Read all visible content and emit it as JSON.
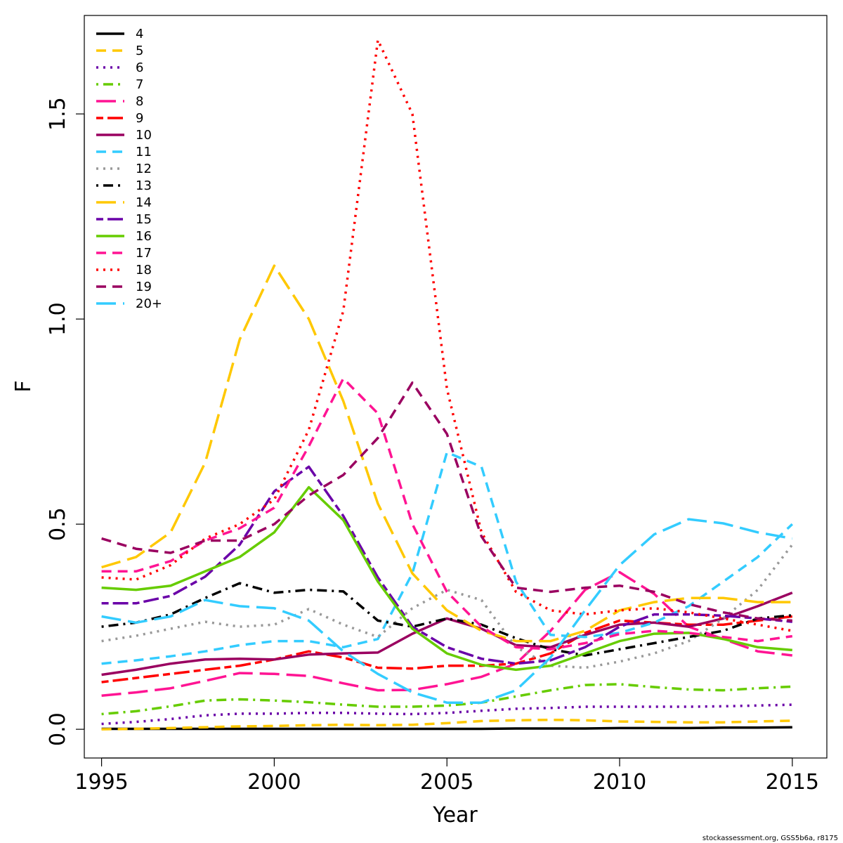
{
  "chart_data": {
    "type": "line",
    "title": "",
    "xlabel": "Year",
    "ylabel": "F",
    "xlim": [
      1994.5,
      2016
    ],
    "ylim": [
      -0.07,
      1.74
    ],
    "x_ticks": [
      1995,
      2000,
      2005,
      2010,
      2015
    ],
    "y_ticks": [
      0.0,
      0.5,
      1.0,
      1.5
    ],
    "x_tick_labels": [
      "1995",
      "2000",
      "2005",
      "2010",
      "2015"
    ],
    "y_tick_labels": [
      "0.0",
      "0.5",
      "1.0",
      "1.5"
    ],
    "grid": false,
    "legend_position": "top-left",
    "x": [
      1995,
      1996,
      1997,
      1998,
      1999,
      2000,
      2001,
      2002,
      2003,
      2004,
      2005,
      2006,
      2007,
      2008,
      2009,
      2010,
      2011,
      2012,
      2013,
      2014,
      2015
    ],
    "series": [
      {
        "name": "4",
        "color": "#000000",
        "dash": "solid",
        "values": [
          0.001,
          0.001,
          0.001,
          0.001,
          0.001,
          0.001,
          0.001,
          0.001,
          0.001,
          0.001,
          0.001,
          0.001,
          0.002,
          0.002,
          0.002,
          0.003,
          0.003,
          0.003,
          0.004,
          0.004,
          0.005
        ]
      },
      {
        "name": "5",
        "color": "#FFC800",
        "dash": "dash",
        "values": [
          0.0,
          0.001,
          0.003,
          0.005,
          0.007,
          0.008,
          0.01,
          0.011,
          0.01,
          0.011,
          0.015,
          0.02,
          0.022,
          0.023,
          0.022,
          0.019,
          0.018,
          0.017,
          0.017,
          0.019,
          0.021
        ]
      },
      {
        "name": "6",
        "color": "#6A00A8",
        "dash": "dot",
        "values": [
          0.013,
          0.018,
          0.025,
          0.034,
          0.038,
          0.038,
          0.04,
          0.04,
          0.038,
          0.037,
          0.04,
          0.045,
          0.05,
          0.052,
          0.055,
          0.055,
          0.055,
          0.055,
          0.056,
          0.058,
          0.06
        ]
      },
      {
        "name": "7",
        "color": "#66CC00",
        "dash": "dotdash",
        "values": [
          0.037,
          0.044,
          0.056,
          0.07,
          0.073,
          0.07,
          0.066,
          0.06,
          0.055,
          0.055,
          0.058,
          0.065,
          0.08,
          0.095,
          0.108,
          0.11,
          0.103,
          0.097,
          0.095,
          0.1,
          0.104
        ]
      },
      {
        "name": "8",
        "color": "#FF1493",
        "dash": "longdash",
        "values": [
          0.082,
          0.09,
          0.1,
          0.118,
          0.137,
          0.135,
          0.13,
          0.112,
          0.095,
          0.096,
          0.11,
          0.128,
          0.16,
          0.24,
          0.34,
          0.383,
          0.33,
          0.25,
          0.22,
          0.19,
          0.18
        ]
      },
      {
        "name": "9",
        "color": "#FF0000",
        "dash": "twodash",
        "values": [
          0.115,
          0.125,
          0.135,
          0.145,
          0.155,
          0.17,
          0.19,
          0.175,
          0.15,
          0.148,
          0.155,
          0.155,
          0.16,
          0.185,
          0.235,
          0.265,
          0.26,
          0.255,
          0.255,
          0.265,
          0.275
        ]
      },
      {
        "name": "10",
        "color": "#9A0060",
        "dash": "solid",
        "values": [
          0.133,
          0.145,
          0.16,
          0.17,
          0.172,
          0.17,
          0.182,
          0.185,
          0.187,
          0.233,
          0.27,
          0.245,
          0.205,
          0.2,
          0.23,
          0.255,
          0.26,
          0.25,
          0.27,
          0.3,
          0.333
        ]
      },
      {
        "name": "11",
        "color": "#33CCFF",
        "dash": "dash",
        "values": [
          0.16,
          0.168,
          0.178,
          0.19,
          0.205,
          0.215,
          0.215,
          0.2,
          0.22,
          0.38,
          0.675,
          0.64,
          0.36,
          0.23,
          0.225,
          0.235,
          0.26,
          0.3,
          0.36,
          0.42,
          0.5
        ]
      },
      {
        "name": "12",
        "color": "#999999",
        "dash": "dot",
        "values": [
          0.215,
          0.228,
          0.245,
          0.262,
          0.25,
          0.255,
          0.293,
          0.255,
          0.225,
          0.295,
          0.34,
          0.315,
          0.2,
          0.155,
          0.15,
          0.165,
          0.185,
          0.215,
          0.27,
          0.34,
          0.45
        ]
      },
      {
        "name": "13",
        "color": "#000000",
        "dash": "dotdash",
        "values": [
          0.25,
          0.26,
          0.28,
          0.32,
          0.356,
          0.333,
          0.34,
          0.336,
          0.265,
          0.25,
          0.27,
          0.255,
          0.222,
          0.195,
          0.18,
          0.195,
          0.21,
          0.225,
          0.24,
          0.27,
          0.278
        ]
      },
      {
        "name": "14",
        "color": "#FFC800",
        "dash": "longdash",
        "values": [
          0.395,
          0.42,
          0.48,
          0.65,
          0.95,
          1.13,
          1.0,
          0.8,
          0.55,
          0.38,
          0.29,
          0.24,
          0.215,
          0.215,
          0.24,
          0.29,
          0.31,
          0.32,
          0.32,
          0.31,
          0.31
        ]
      },
      {
        "name": "15",
        "color": "#6A00A8",
        "dash": "twodash",
        "values": [
          0.307,
          0.307,
          0.325,
          0.372,
          0.45,
          0.58,
          0.64,
          0.52,
          0.37,
          0.25,
          0.2,
          0.172,
          0.16,
          0.168,
          0.2,
          0.25,
          0.28,
          0.28,
          0.277,
          0.27,
          0.262
        ]
      },
      {
        "name": "16",
        "color": "#66CC00",
        "dash": "solid",
        "values": [
          0.345,
          0.34,
          0.35,
          0.385,
          0.42,
          0.48,
          0.59,
          0.51,
          0.36,
          0.245,
          0.185,
          0.157,
          0.145,
          0.155,
          0.185,
          0.215,
          0.233,
          0.235,
          0.22,
          0.2,
          0.193
        ]
      },
      {
        "name": "17",
        "color": "#FF1493",
        "dash": "dash",
        "values": [
          0.385,
          0.385,
          0.41,
          0.46,
          0.49,
          0.54,
          0.69,
          0.855,
          0.77,
          0.5,
          0.335,
          0.25,
          0.2,
          0.195,
          0.21,
          0.232,
          0.24,
          0.235,
          0.225,
          0.215,
          0.227
        ]
      },
      {
        "name": "18",
        "color": "#FF0000",
        "dash": "dot",
        "values": [
          0.37,
          0.365,
          0.4,
          0.465,
          0.5,
          0.56,
          0.73,
          1.02,
          1.68,
          1.5,
          0.83,
          0.48,
          0.335,
          0.29,
          0.28,
          0.29,
          0.295,
          0.285,
          0.27,
          0.255,
          0.24
        ]
      },
      {
        "name": "19",
        "color": "#9A0060",
        "dash": "dash",
        "values": [
          0.465,
          0.44,
          0.43,
          0.46,
          0.46,
          0.5,
          0.57,
          0.62,
          0.71,
          0.845,
          0.72,
          0.47,
          0.345,
          0.335,
          0.345,
          0.35,
          0.335,
          0.305,
          0.285,
          0.27,
          0.265
        ]
      },
      {
        "name": "20+",
        "color": "#33CCFF",
        "dash": "longdash",
        "values": [
          0.275,
          0.26,
          0.275,
          0.315,
          0.3,
          0.295,
          0.265,
          0.19,
          0.135,
          0.09,
          0.065,
          0.065,
          0.095,
          0.175,
          0.29,
          0.4,
          0.475,
          0.512,
          0.502,
          0.48,
          0.465
        ]
      }
    ]
  },
  "footer": {
    "credit": "stockassessment.org, GSS5b6a, r8175"
  }
}
